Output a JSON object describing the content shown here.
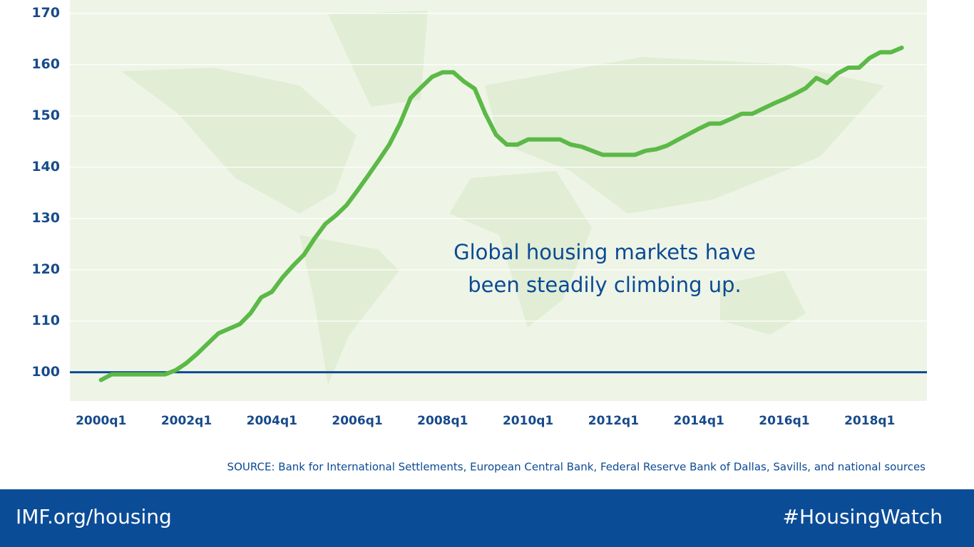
{
  "chart_data": {
    "type": "line",
    "annotation": [
      "Global housing markets have",
      "been steadily climbing up."
    ],
    "source": "SOURCE: Bank for International Settlements, European Central Bank, Federal Reserve Bank of Dallas, Savills, and national sources",
    "footer_left": "IMF.org/housing",
    "footer_right": "#HousingWatch",
    "color": "#5cb947",
    "x": [
      2000,
      2000.25,
      2000.5,
      2000.75,
      2001,
      2001.25,
      2001.5,
      2001.75,
      2002,
      2002.25,
      2002.5,
      2002.75,
      2003,
      2003.25,
      2003.5,
      2003.75,
      2004,
      2004.25,
      2004.5,
      2004.75,
      2005,
      2005.25,
      2005.5,
      2005.75,
      2006,
      2006.25,
      2006.5,
      2006.75,
      2007,
      2007.25,
      2007.5,
      2007.75,
      2008,
      2008.25,
      2008.5,
      2008.75,
      2009,
      2009.25,
      2009.5,
      2009.75,
      2010,
      2010.25,
      2010.5,
      2010.75,
      2011,
      2011.25,
      2011.5,
      2011.75,
      2012,
      2012.25,
      2012.5,
      2012.75,
      2013,
      2013.25,
      2013.5,
      2013.75,
      2014,
      2014.25,
      2014.5,
      2014.75,
      2015,
      2015.25,
      2015.5,
      2015.75,
      2016,
      2016.25,
      2016.5,
      2016.75,
      2017,
      2017.25,
      2017.5,
      2017.75,
      2018,
      2018.25,
      2018.5,
      2018.75
    ],
    "values": [
      98.5,
      99.6,
      99.6,
      99.6,
      99.6,
      99.6,
      99.6,
      100.4,
      101.8,
      103.6,
      105.6,
      107.6,
      108.5,
      109.4,
      111.5,
      114.6,
      115.7,
      118.5,
      120.8,
      122.9,
      126.1,
      128.9,
      130.6,
      132.6,
      135.4,
      138.3,
      141.3,
      144.4,
      148.5,
      153.5,
      155.6,
      157.6,
      158.5,
      158.5,
      156.7,
      155.3,
      150.4,
      146.3,
      144.4,
      144.4,
      145.4,
      145.4,
      145.4,
      145.4,
      144.4,
      144.0,
      143.2,
      142.4,
      142.4,
      142.4,
      142.4,
      143.2,
      143.5,
      144.2,
      145.3,
      146.4,
      147.5,
      148.5,
      148.5,
      149.4,
      150.4,
      150.4,
      151.4,
      152.4,
      153.3,
      154.3,
      155.4,
      157.4,
      156.4,
      158.3,
      159.4,
      159.4,
      161.3,
      162.4,
      162.4,
      163.3
    ],
    "xlim": [
      1999.27,
      2019.34
    ],
    "xticks": [
      {
        "value": 2000,
        "label": "2000q1"
      },
      {
        "value": 2002,
        "label": "2002q1"
      },
      {
        "value": 2004,
        "label": "2004q1"
      },
      {
        "value": 2006,
        "label": "2006q1"
      },
      {
        "value": 2008,
        "label": "2008q1"
      },
      {
        "value": 2010,
        "label": "2010q1"
      },
      {
        "value": 2012,
        "label": "2012q1"
      },
      {
        "value": 2014,
        "label": "2014q1"
      },
      {
        "value": 2016,
        "label": "2016q1"
      },
      {
        "value": 2018,
        "label": "2018q1"
      }
    ],
    "ylim": [
      94.4,
      172.6
    ],
    "yticks": [
      100,
      110,
      120,
      130,
      140,
      150,
      160,
      170
    ],
    "grid": true,
    "reference_line": {
      "value": 100,
      "color": "#0b4a94"
    }
  }
}
